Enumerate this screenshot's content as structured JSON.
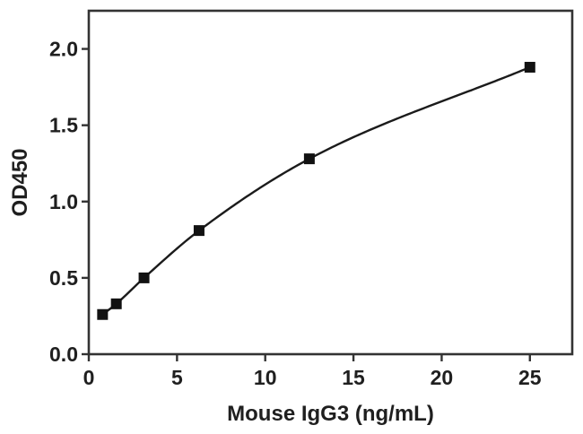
{
  "figure": {
    "background": "#ffffff"
  },
  "chart_data": {
    "type": "scatter",
    "title": "",
    "xlabel": "Mouse IgG3 (ng/mL)",
    "ylabel": "OD450",
    "x": [
      0.78,
      1.56,
      3.13,
      6.25,
      12.5,
      25
    ],
    "y": [
      0.26,
      0.33,
      0.5,
      0.81,
      1.28,
      1.88
    ],
    "xlim": [
      0,
      27.4
    ],
    "ylim": [
      0,
      2.25
    ],
    "x_ticks": [
      0,
      5,
      10,
      15,
      20,
      25
    ],
    "x_tick_labels": [
      "0",
      "5",
      "10",
      "15",
      "20",
      "25"
    ],
    "y_ticks": [
      0.0,
      0.5,
      1.0,
      1.5,
      2.0
    ],
    "y_tick_labels": [
      "0.0",
      "0.5",
      "1.0",
      "1.5",
      "2.0"
    ],
    "grid": false,
    "legend": null,
    "line_style": "smooth-fit-curve",
    "marker": "square",
    "marker_color": "#121212",
    "line_color": "#1b1b1b",
    "frame_color": "#333333",
    "text_color": "#1f1f1f"
  }
}
